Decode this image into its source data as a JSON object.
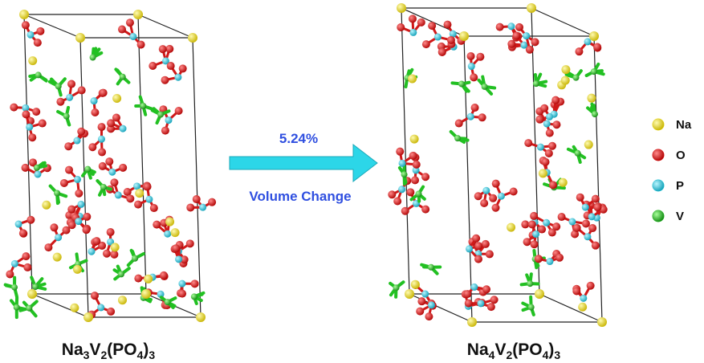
{
  "arrow": {
    "top_text": "5.24%",
    "bottom_text": "Volume Change"
  },
  "structures": [
    {
      "formula": [
        "Na",
        "3",
        "V",
        "2",
        "(PO",
        "4",
        ")",
        "3"
      ]
    },
    {
      "formula": [
        "Na",
        "4",
        "V",
        "2",
        "(PO",
        "4",
        ")",
        "3"
      ]
    }
  ],
  "legend": [
    {
      "label": "Na",
      "color": "#e8d81c"
    },
    {
      "label": "O",
      "color": "#e01818"
    },
    {
      "label": "P",
      "color": "#28c8d8"
    },
    {
      "label": "V",
      "color": "#28b828"
    }
  ]
}
